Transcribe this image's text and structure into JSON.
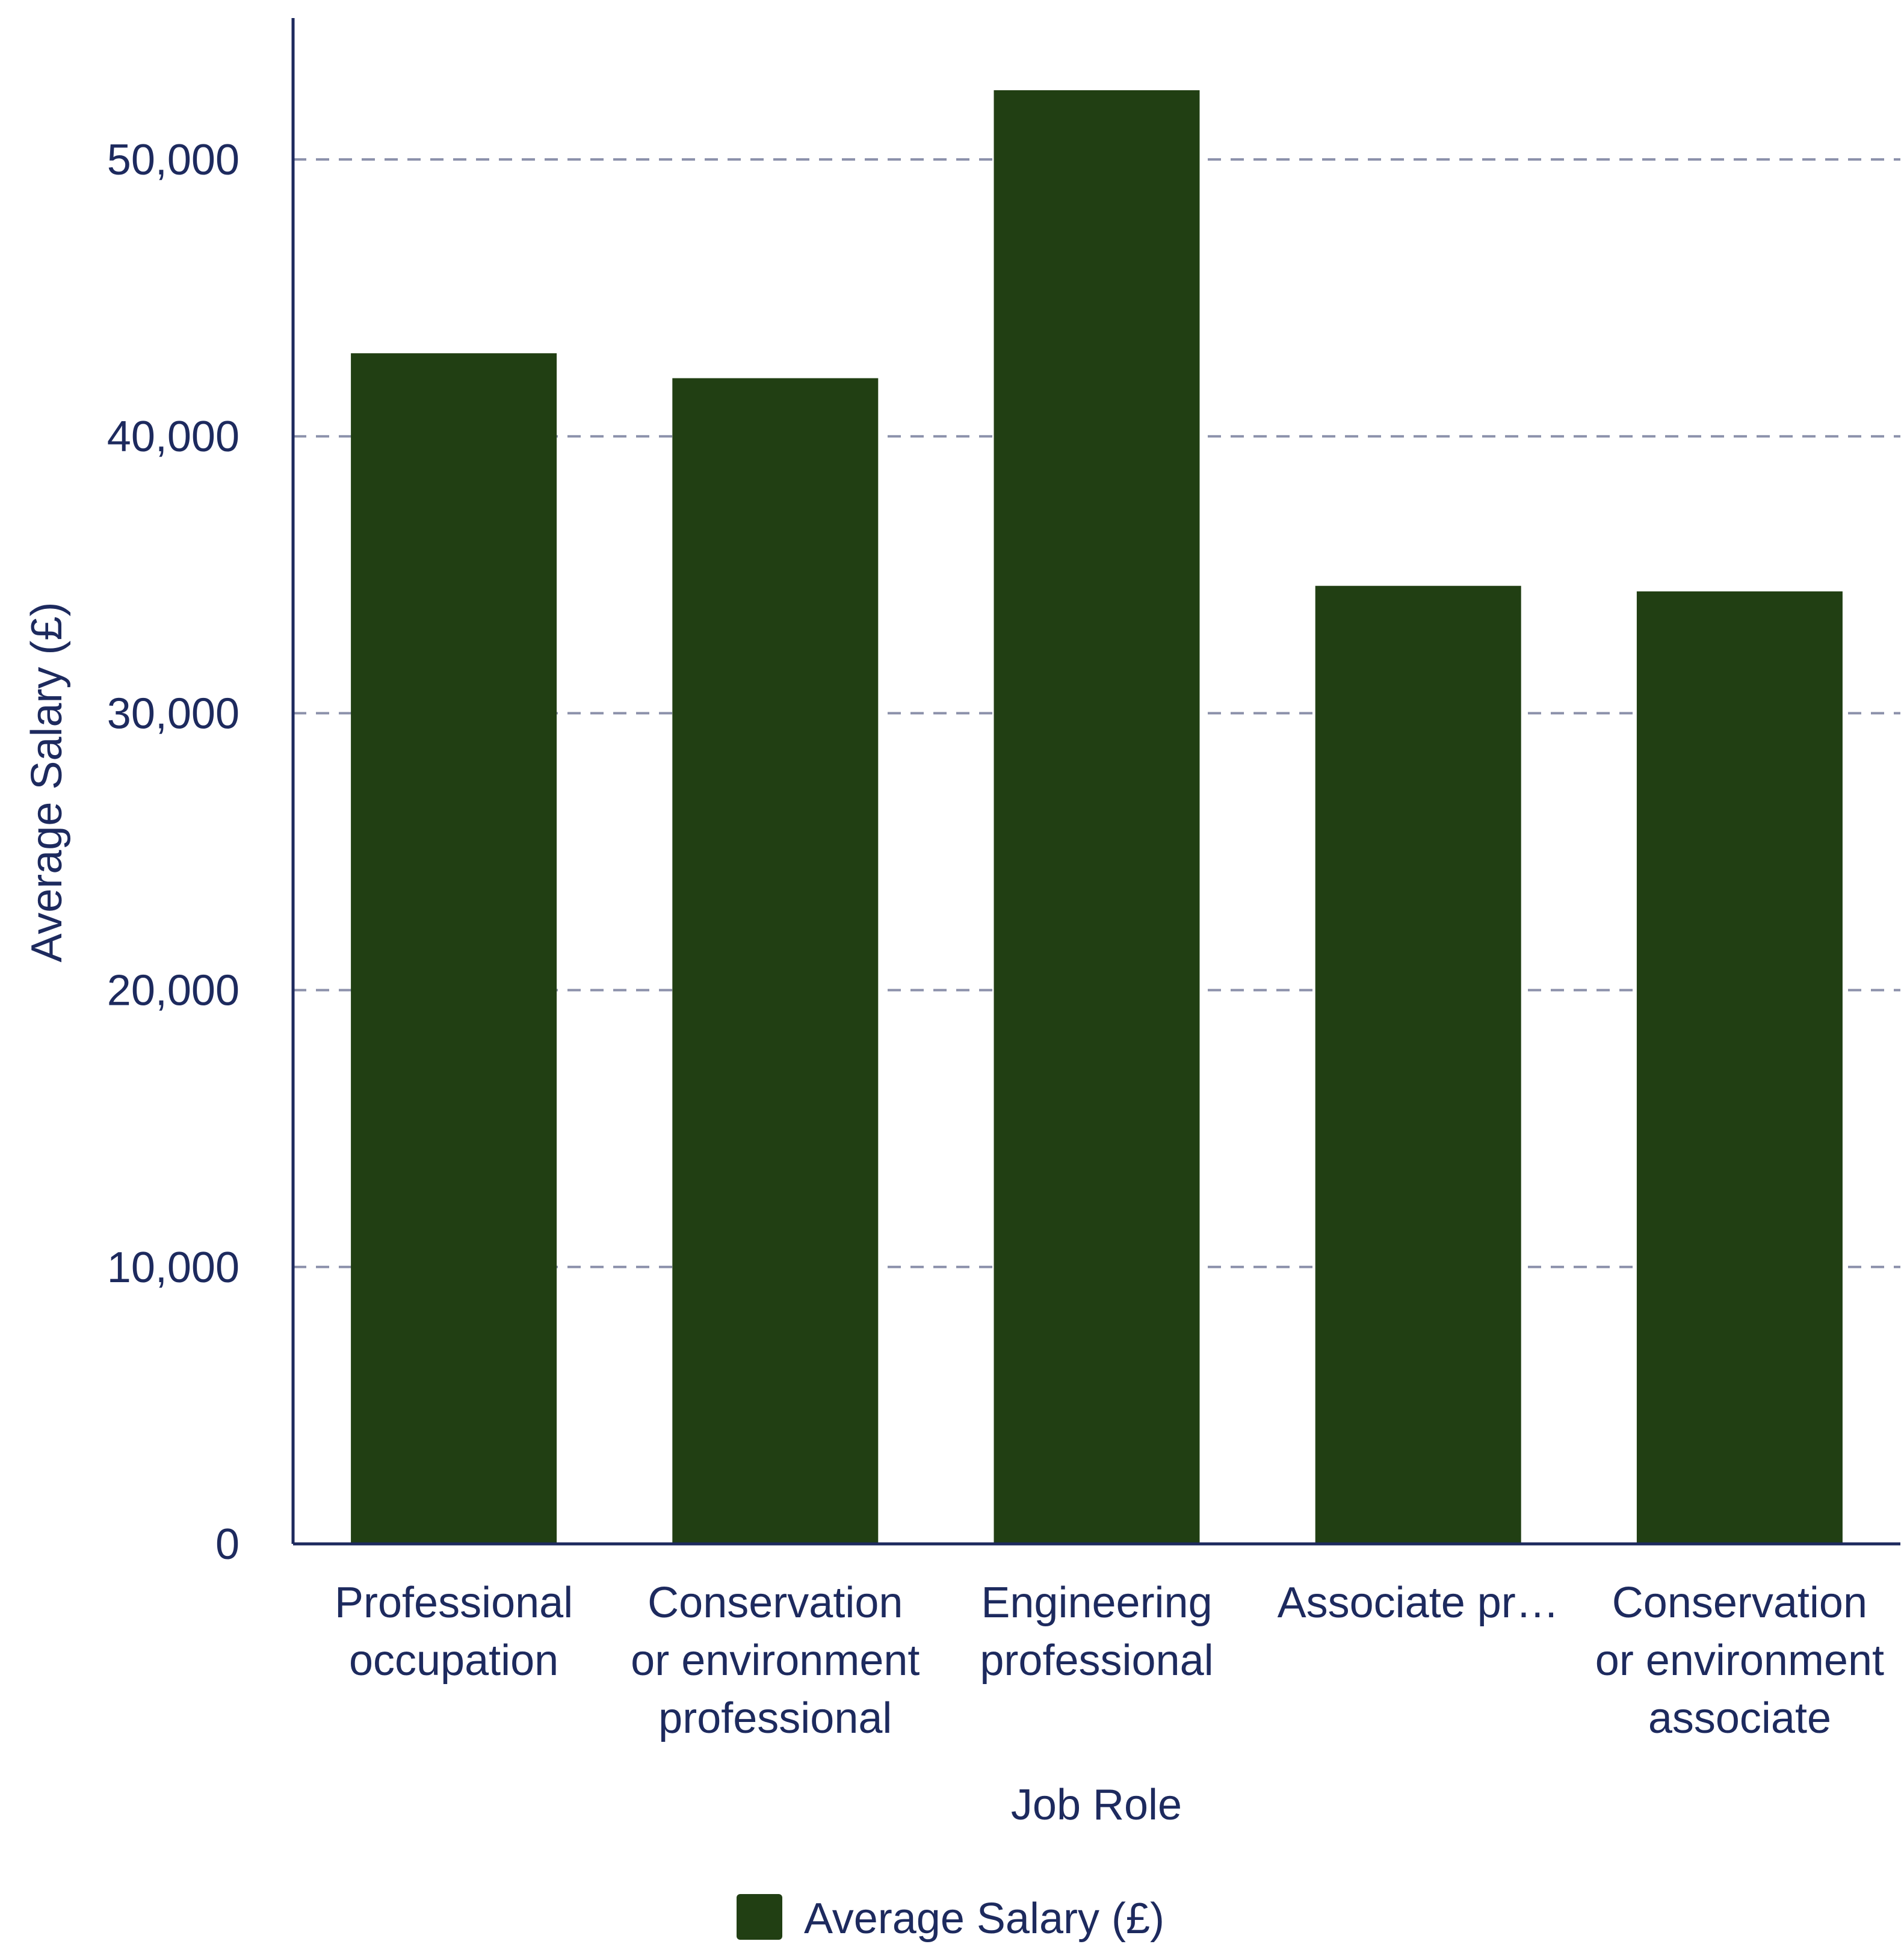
{
  "chart_data": {
    "type": "bar",
    "categories": [
      [
        "Professional",
        "occupation"
      ],
      [
        "Conservation",
        "or environment",
        "professional"
      ],
      [
        "Engineering",
        "professional"
      ],
      [
        "Associate pr…"
      ],
      [
        "Conservation",
        "or environment",
        "associate"
      ]
    ],
    "series": [
      {
        "name": "Average Salary (£)",
        "color": "#213f13",
        "values": [
          43000,
          42100,
          52500,
          34600,
          34400
        ]
      }
    ],
    "xlabel": "Job Role",
    "ylabel": "Average Salary (£)",
    "ylim": [
      0,
      55000
    ],
    "yticks": [
      0,
      10000,
      20000,
      30000,
      40000,
      50000
    ],
    "ytick_labels": [
      "0",
      "10,000",
      "20,000",
      "30,000",
      "40,000",
      "50,000"
    ],
    "grid": true,
    "legend_position": "bottom-center"
  }
}
